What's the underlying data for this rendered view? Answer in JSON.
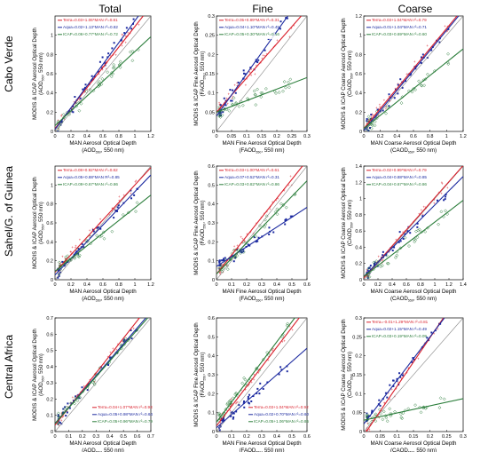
{
  "columns": [
    "Total",
    "Fine",
    "Coarse"
  ],
  "rows": [
    "Cabo Verde",
    "Sahel/G. of Guinea",
    "Central Africa"
  ],
  "colors": {
    "terra": "#d91e2a",
    "aqua": "#1c2aa0",
    "icap": "#2a7d3a",
    "one_to_one": "#888888"
  },
  "chart_data": [
    {
      "type": "scatter",
      "row": 0,
      "col": 0,
      "xlim": [
        0,
        1.2
      ],
      "ylim": [
        0,
        1.2
      ],
      "xticks": [
        "0",
        "0.2",
        "0.4",
        "0.6",
        "0.8",
        "1",
        "1.2"
      ],
      "yticks": [
        "0",
        "0.2",
        "0.4",
        "0.6",
        "0.8",
        "1"
      ],
      "xlabel": "MAN Aerosol Optical Depth",
      "xlabel_sym": "(AOD",
      "xlabel_unit": ", 550 nm)",
      "ylabel": "MODIS & ICAP Aerosol Optical Depth",
      "ylabel_sym": "(AOD",
      "ylabel_unit": ", 550 nm)",
      "legend_pos": "top-left",
      "series": [
        {
          "name": "Terra",
          "fit": "Terra=0.03+1.06*MAN r²=0.81",
          "intercept": 0.03,
          "slope": 1.06
        },
        {
          "name": "Aqua",
          "fit": "Aqua=0.02+1.13*MAN r²=0.82",
          "intercept": 0.02,
          "slope": 1.13
        },
        {
          "name": "ICAP",
          "fit": "ICAP=0.06+0.77*MAN r²=0.72",
          "intercept": 0.06,
          "slope": 0.77
        }
      ]
    },
    {
      "type": "scatter",
      "row": 0,
      "col": 1,
      "xlim": [
        0,
        0.3
      ],
      "ylim": [
        0,
        0.3
      ],
      "xticks": [
        "0",
        "0.05",
        "0.1",
        "0.15",
        "0.2",
        "0.25",
        "0.3"
      ],
      "yticks": [
        "0",
        "0.05",
        "0.1",
        "0.15",
        "0.2",
        "0.25",
        "0.3"
      ],
      "xlabel": "MAN Fine Aerosol Optical Depth",
      "xlabel_sym": "(FAOD",
      "xlabel_unit": ", 550 nm)",
      "ylabel": "MODIS & ICAP Fine Aerosol Optical Depth",
      "ylabel_sym": "(FAOD",
      "ylabel_unit": ", 550 nm)",
      "legend_pos": "top-left",
      "series": [
        {
          "name": "Terra",
          "fit": "Terra=0.05+0.89*MAN r²=0.31",
          "intercept": 0.05,
          "slope": 0.89
        },
        {
          "name": "Aqua",
          "fit": "Aqua=0.04+1.10*MAN r²=0.45",
          "intercept": 0.04,
          "slope": 1.1
        },
        {
          "name": "ICAP",
          "fit": "ICAP=0.05+0.30*MAN r²=0.16",
          "intercept": 0.05,
          "slope": 0.3
        }
      ]
    },
    {
      "type": "scatter",
      "row": 0,
      "col": 2,
      "xlim": [
        0,
        1.2
      ],
      "ylim": [
        0,
        1.2
      ],
      "xticks": [
        "0",
        "0.2",
        "0.4",
        "0.6",
        "0.8",
        "1",
        "1.2"
      ],
      "yticks": [
        "0",
        "0.2",
        "0.4",
        "0.6",
        "0.8",
        "1",
        "1.2"
      ],
      "xlabel": "MAN Coarse Aerosol Optical Depth",
      "xlabel_sym": "(CAOD",
      "xlabel_unit": ", 550 nm)",
      "ylabel": "MODIS & ICAP Coarse Aerosol Optical Depth",
      "ylabel_sym": "(CAOD",
      "ylabel_unit": ", 550 nm)",
      "legend_pos": "top-left",
      "series": [
        {
          "name": "Terra",
          "fit": "Terra=0.03+1.04*MAN r²=0.79",
          "intercept": 0.03,
          "slope": 1.04
        },
        {
          "name": "Aqua",
          "fit": "Aqua=0.01+1.04*MAN r²=0.71",
          "intercept": 0.01,
          "slope": 1.04
        },
        {
          "name": "ICAP",
          "fit": "ICAP=0.03+0.69*MAN r²=0.60",
          "intercept": 0.03,
          "slope": 0.69
        }
      ]
    },
    {
      "type": "scatter",
      "row": 1,
      "col": 0,
      "xlim": [
        0,
        1.2
      ],
      "ylim": [
        0,
        1.2
      ],
      "xticks": [
        "0",
        "0.2",
        "0.4",
        "0.6",
        "0.8",
        "1",
        "1.2"
      ],
      "yticks": [
        "0",
        "0.2",
        "0.4",
        "0.6",
        "0.8",
        "1"
      ],
      "xlabel": "MAN Aerosol Optical Depth",
      "xlabel_sym": "(AOD",
      "xlabel_unit": ", 550 nm)",
      "ylabel": "MODIS & ICAP Aerosol Optical Depth",
      "ylabel_sym": "(AOD",
      "ylabel_unit": ", 550 nm)",
      "legend_pos": "top-left",
      "series": [
        {
          "name": "Terra",
          "fit": "Terra=0.08+0.92*MAN r²=0.82",
          "intercept": 0.08,
          "slope": 0.92
        },
        {
          "name": "Aqua",
          "fit": "Aqua=0.05+0.88*MAN R²=0.85",
          "intercept": 0.05,
          "slope": 0.88
        },
        {
          "name": "ICAP",
          "fit": "ICAP=0.09+0.67*MAN r²=0.86",
          "intercept": 0.09,
          "slope": 0.67
        }
      ]
    },
    {
      "type": "scatter",
      "row": 1,
      "col": 1,
      "xlim": [
        0,
        0.6
      ],
      "ylim": [
        0,
        0.6
      ],
      "xticks": [
        "0",
        "0.1",
        "0.2",
        "0.3",
        "0.4",
        "0.5",
        "0.6"
      ],
      "yticks": [
        "0",
        "0.1",
        "0.2",
        "0.3",
        "0.4",
        "0.5",
        "0.6"
      ],
      "xlabel": "MAN Fine Aerosol Optical Depth",
      "xlabel_sym": "(FAOD",
      "xlabel_unit": ", 550 nm)",
      "ylabel": "MODIS & ICAP Fine Aerosol Optical Depth",
      "ylabel_sym": "(FAOD",
      "ylabel_unit": ", 550 nm)",
      "legend_pos": "top-left",
      "series": [
        {
          "name": "Terra",
          "fit": "Terra=0.03+1.00*MAN r²=0.61",
          "intercept": 0.03,
          "slope": 1.0
        },
        {
          "name": "Aqua",
          "fit": "Aqua=0.07+0.52*MAN r²=0.31",
          "intercept": 0.07,
          "slope": 0.52
        },
        {
          "name": "ICAP",
          "fit": "ICAP=0.03+0.82*MAN r²=0.86",
          "intercept": 0.03,
          "slope": 0.82
        }
      ]
    },
    {
      "type": "scatter",
      "row": 1,
      "col": 2,
      "xlim": [
        0,
        1.4
      ],
      "ylim": [
        0,
        1.4
      ],
      "xticks": [
        "0",
        "0.2",
        "0.4",
        "0.6",
        "0.8",
        "1",
        "1.2",
        "1.4"
      ],
      "yticks": [
        "0",
        "0.2",
        "0.4",
        "0.6",
        "0.8",
        "1",
        "1.2",
        "1.4"
      ],
      "xlabel": "MAN Coarse Aerosol Optical Depth",
      "xlabel_sym": "(CAOD",
      "xlabel_unit": ", 550 nm)",
      "ylabel": "MODIS & ICAP Coarse Aerosol Optical Depth",
      "ylabel_sym": "(CAOD",
      "ylabel_unit": ", 550 nm)",
      "legend_pos": "top-left",
      "series": [
        {
          "name": "Terra",
          "fit": "Terra=0.02+0.99*MAN r²=0.79",
          "intercept": 0.02,
          "slope": 0.99
        },
        {
          "name": "Aqua",
          "fit": "Aqua=0.04+0.88*MAN r²=0.85",
          "intercept": 0.04,
          "slope": 0.88
        },
        {
          "name": "ICAP",
          "fit": "ICAP=0.04+0.67*MAN r²=0.86",
          "intercept": 0.04,
          "slope": 0.67
        }
      ]
    },
    {
      "type": "scatter",
      "row": 2,
      "col": 0,
      "xlim": [
        0,
        0.7
      ],
      "ylim": [
        0,
        0.7
      ],
      "xticks": [
        "0",
        "0.1",
        "0.2",
        "0.3",
        "0.4",
        "0.5",
        "0.6",
        "0.7"
      ],
      "yticks": [
        "0",
        "0.1",
        "0.2",
        "0.3",
        "0.4",
        "0.5",
        "0.6",
        "0.7"
      ],
      "xlabel": "MAN Aerosol Optical Depth",
      "xlabel_sym": "(AOD",
      "xlabel_unit": ", 550 nm)",
      "ylabel": "MODIS & ICAP Aerosol Optical Depth",
      "ylabel_sym": "(AOD",
      "ylabel_unit": ", 550 nm)",
      "legend_pos": "bottom-right",
      "series": [
        {
          "name": "Terra",
          "fit": "Terra=0.04+1.07*MAN r²=0.93",
          "intercept": 0.04,
          "slope": 1.07
        },
        {
          "name": "Aqua",
          "fit": "Aqua=0.05+0.98*MAN r²=0.64",
          "intercept": 0.05,
          "slope": 0.98
        },
        {
          "name": "ICAP",
          "fit": "ICAP=0.05+0.96*MAN r²=0.79",
          "intercept": 0.05,
          "slope": 0.96
        }
      ]
    },
    {
      "type": "scatter",
      "row": 2,
      "col": 1,
      "xlim": [
        0,
        0.6
      ],
      "ylim": [
        0,
        0.6
      ],
      "xticks": [
        "0",
        "0.1",
        "0.2",
        "0.3",
        "0.4",
        "0.5",
        "0.6"
      ],
      "yticks": [
        "0",
        "0.1",
        "0.2",
        "0.3",
        "0.4",
        "0.5",
        "0.6"
      ],
      "xlabel": "MAN Fine Aerosol Optical Depth",
      "xlabel_sym": "(FAOD",
      "xlabel_unit": ", 550 nm)",
      "ylabel": "MODIS & ICAP Fine Aerosol Optical Depth",
      "ylabel_sym": "(FAOD",
      "ylabel_unit": ", 550 nm)",
      "legend_pos": "bottom-right",
      "series": [
        {
          "name": "Terra",
          "fit": "Terra=0.03+1.04*MAN r²=0.92",
          "intercept": 0.03,
          "slope": 1.04
        },
        {
          "name": "Aqua",
          "fit": "Aqua=0.02+0.70*MAN r²=0.60",
          "intercept": 0.02,
          "slope": 0.7
        },
        {
          "name": "ICAP",
          "fit": "ICAP=0.05+1.06*MAN r²=0.86",
          "intercept": 0.05,
          "slope": 1.06
        }
      ]
    },
    {
      "type": "scatter",
      "row": 2,
      "col": 2,
      "xlim": [
        0,
        0.3
      ],
      "ylim": [
        0,
        0.3
      ],
      "xticks": [
        "0",
        "0.05",
        "0.1",
        "0.15",
        "0.2",
        "0.25",
        "0.3"
      ],
      "yticks": [
        "0",
        "0.05",
        "0.1",
        "0.15",
        "0.2",
        "0.25",
        "0.3"
      ],
      "xlabel": "MAN Coarse Aerosol Optical Depth",
      "xlabel_sym": "(CAOD",
      "xlabel_unit": ", 550 nm)",
      "ylabel": "MODIS & ICAP Coarse Aerosol Optical Depth",
      "ylabel_sym": "(CAOD",
      "ylabel_unit": ", 550 nm)",
      "legend_pos": "top-left",
      "series": [
        {
          "name": "Terra",
          "fit": "Terra=-0.01+1.29*MAN r²=0.81",
          "intercept": -0.01,
          "slope": 1.29
        },
        {
          "name": "Aqua",
          "fit": "Aqua=0.02+1.15*MAN r²=0.49",
          "intercept": 0.02,
          "slope": 1.15
        },
        {
          "name": "ICAP",
          "fit": "ICAP=0.03+0.19*MAN r²=0.09",
          "intercept": 0.03,
          "slope": 0.19
        }
      ]
    }
  ]
}
